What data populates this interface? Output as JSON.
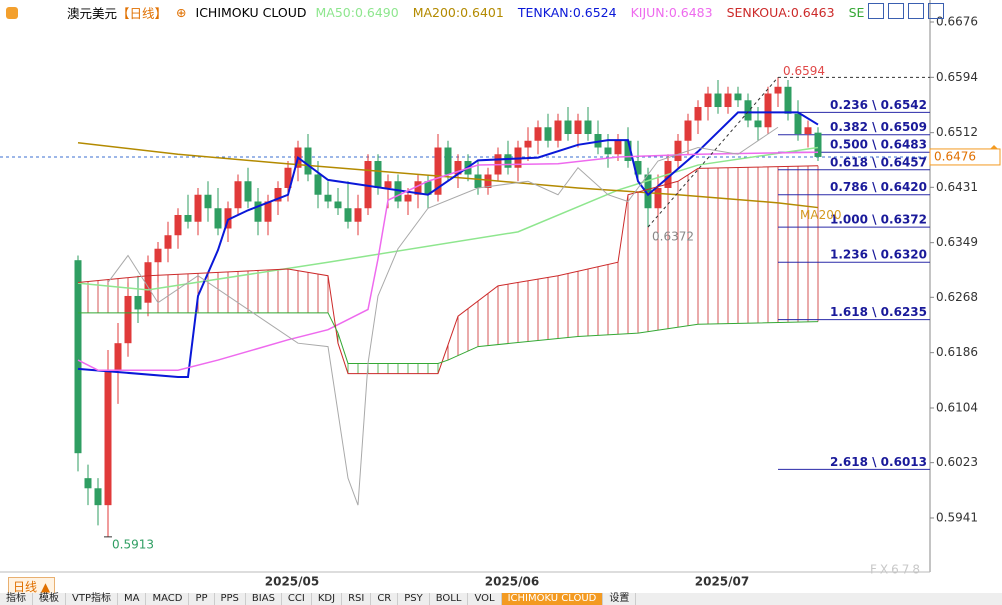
{
  "header": {
    "symbol": "澳元美元",
    "period": "【日线】",
    "study": "ICHIMOKU CLOUD"
  },
  "chart_data": {
    "type": "candlestick",
    "categories": [
      null,
      null,
      null,
      null,
      null,
      null,
      null,
      null,
      null,
      null,
      null,
      null,
      null,
      null,
      null,
      null,
      null,
      null,
      null,
      null,
      null,
      "2025/05",
      null,
      null,
      null,
      null,
      null,
      null,
      null,
      null,
      null,
      null,
      null,
      null,
      null,
      null,
      null,
      null,
      null,
      null,
      null,
      null,
      null,
      "2025/06",
      null,
      null,
      null,
      null,
      null,
      null,
      null,
      null,
      null,
      null,
      null,
      null,
      null,
      null,
      null,
      null,
      null,
      null,
      null,
      null,
      "2025/07",
      null,
      null,
      null,
      null,
      null,
      null,
      null,
      null,
      null,
      null
    ],
    "ylim": [
      0.58639,
      0.67086
    ],
    "yticks": [
      0.6676,
      0.6594,
      0.6512,
      0.6431,
      0.6349,
      0.6268,
      0.6186,
      0.6104,
      0.6023,
      0.5941
    ],
    "up_color": "#e03a3a",
    "down_color": "#2f9e62",
    "ohlc": [
      [
        0.6323,
        0.633,
        0.601,
        0.6037
      ],
      [
        0.6,
        0.602,
        0.596,
        0.5985
      ],
      [
        0.5985,
        0.6,
        0.593,
        0.596
      ],
      [
        0.596,
        0.619,
        0.5913,
        0.616
      ],
      [
        0.616,
        0.623,
        0.611,
        0.62
      ],
      [
        0.62,
        0.629,
        0.618,
        0.627
      ],
      [
        0.627,
        0.63,
        0.623,
        0.625
      ],
      [
        0.626,
        0.633,
        0.624,
        0.632
      ],
      [
        0.632,
        0.635,
        0.629,
        0.634
      ],
      [
        0.634,
        0.638,
        0.632,
        0.636
      ],
      [
        0.636,
        0.64,
        0.634,
        0.639
      ],
      [
        0.639,
        0.642,
        0.637,
        0.638
      ],
      [
        0.638,
        0.643,
        0.636,
        0.642
      ],
      [
        0.642,
        0.644,
        0.638,
        0.64
      ],
      [
        0.64,
        0.643,
        0.636,
        0.637
      ],
      [
        0.637,
        0.641,
        0.635,
        0.64
      ],
      [
        0.64,
        0.645,
        0.639,
        0.644
      ],
      [
        0.644,
        0.646,
        0.64,
        0.641
      ],
      [
        0.641,
        0.643,
        0.636,
        0.638
      ],
      [
        0.638,
        0.642,
        0.636,
        0.641
      ],
      [
        0.641,
        0.644,
        0.639,
        0.643
      ],
      [
        0.643,
        0.647,
        0.641,
        0.646
      ],
      [
        0.646,
        0.65,
        0.644,
        0.649
      ],
      [
        0.649,
        0.651,
        0.644,
        0.645
      ],
      [
        0.645,
        0.647,
        0.64,
        0.642
      ],
      [
        0.642,
        0.644,
        0.64,
        0.641
      ],
      [
        0.641,
        0.643,
        0.639,
        0.64
      ],
      [
        0.64,
        0.644,
        0.637,
        0.638
      ],
      [
        0.638,
        0.642,
        0.636,
        0.64
      ],
      [
        0.64,
        0.648,
        0.639,
        0.647
      ],
      [
        0.647,
        0.648,
        0.642,
        0.643
      ],
      [
        0.643,
        0.645,
        0.64,
        0.644
      ],
      [
        0.644,
        0.645,
        0.64,
        0.641
      ],
      [
        0.641,
        0.643,
        0.639,
        0.642
      ],
      [
        0.642,
        0.645,
        0.64,
        0.644
      ],
      [
        0.644,
        0.645,
        0.64,
        0.642
      ],
      [
        0.642,
        0.651,
        0.641,
        0.649
      ],
      [
        0.649,
        0.65,
        0.644,
        0.645
      ],
      [
        0.645,
        0.648,
        0.643,
        0.647
      ],
      [
        0.647,
        0.648,
        0.644,
        0.645
      ],
      [
        0.645,
        0.647,
        0.642,
        0.643
      ],
      [
        0.643,
        0.646,
        0.642,
        0.645
      ],
      [
        0.645,
        0.649,
        0.644,
        0.648
      ],
      [
        0.648,
        0.65,
        0.645,
        0.646
      ],
      [
        0.646,
        0.65,
        0.644,
        0.649
      ],
      [
        0.649,
        0.652,
        0.647,
        0.65
      ],
      [
        0.65,
        0.653,
        0.648,
        0.652
      ],
      [
        0.652,
        0.654,
        0.649,
        0.65
      ],
      [
        0.65,
        0.654,
        0.649,
        0.653
      ],
      [
        0.653,
        0.655,
        0.65,
        0.651
      ],
      [
        0.651,
        0.654,
        0.649,
        0.653
      ],
      [
        0.653,
        0.655,
        0.65,
        0.651
      ],
      [
        0.651,
        0.653,
        0.648,
        0.649
      ],
      [
        0.649,
        0.651,
        0.646,
        0.648
      ],
      [
        0.648,
        0.651,
        0.647,
        0.65
      ],
      [
        0.65,
        0.652,
        0.646,
        0.647
      ],
      [
        0.647,
        0.65,
        0.644,
        0.645
      ],
      [
        0.645,
        0.646,
        0.6372,
        0.64
      ],
      [
        0.64,
        0.645,
        0.639,
        0.643
      ],
      [
        0.643,
        0.648,
        0.642,
        0.647
      ],
      [
        0.647,
        0.651,
        0.646,
        0.65
      ],
      [
        0.65,
        0.654,
        0.648,
        0.653
      ],
      [
        0.653,
        0.656,
        0.651,
        0.655
      ],
      [
        0.655,
        0.658,
        0.653,
        0.657
      ],
      [
        0.657,
        0.659,
        0.654,
        0.655
      ],
      [
        0.655,
        0.658,
        0.654,
        0.657
      ],
      [
        0.657,
        0.658,
        0.655,
        0.656
      ],
      [
        0.656,
        0.657,
        0.652,
        0.653
      ],
      [
        0.653,
        0.655,
        0.65,
        0.652
      ],
      [
        0.652,
        0.658,
        0.651,
        0.657
      ],
      [
        0.657,
        0.6594,
        0.655,
        0.658
      ],
      [
        0.658,
        0.659,
        0.653,
        0.654
      ],
      [
        0.654,
        0.656,
        0.65,
        0.651
      ],
      [
        0.651,
        0.653,
        0.649,
        0.652
      ],
      [
        0.6512,
        0.652,
        0.647,
        0.6476
      ]
    ],
    "lines": [
      {
        "label": "MA50:0.6490",
        "color": "#8ee68e",
        "width": 1.5,
        "x": [
          0,
          7,
          25,
          44,
          54,
          62,
          74
        ],
        "values": [
          0.6289,
          0.6279,
          0.632,
          0.6365,
          0.6427,
          0.6464,
          0.649
        ]
      },
      {
        "label": "MA200:0.6401",
        "color": "#b38a00",
        "width": 1.5,
        "x": [
          0,
          10,
          20,
          30,
          40,
          50,
          60,
          70,
          74
        ],
        "values": [
          0.6497,
          0.648,
          0.6467,
          0.6455,
          0.6443,
          0.643,
          0.642,
          0.6408,
          0.6401
        ]
      },
      {
        "label": "TENKAN:0.6524",
        "color": "#0a18d8",
        "width": 2,
        "x": [
          0,
          10,
          11,
          12,
          14,
          15,
          17,
          21,
          22,
          25,
          35,
          40,
          46,
          50,
          53,
          55,
          56,
          57,
          62,
          66,
          72,
          74
        ],
        "values": [
          0.6162,
          0.615,
          0.615,
          0.627,
          0.6338,
          0.6383,
          0.6397,
          0.642,
          0.6475,
          0.6442,
          0.642,
          0.6471,
          0.6475,
          0.6494,
          0.6501,
          0.6501,
          0.644,
          0.642,
          0.6484,
          0.6542,
          0.6542,
          0.6524
        ]
      },
      {
        "label": "KIJUN:0.6483",
        "color": "#ee6aee",
        "width": 1.5,
        "x": [
          0,
          2,
          10,
          14,
          21,
          25,
          29,
          30,
          31,
          35,
          40,
          48,
          54,
          62,
          74
        ],
        "values": [
          0.6175,
          0.616,
          0.616,
          0.6175,
          0.6205,
          0.622,
          0.625,
          0.6325,
          0.6412,
          0.644,
          0.6464,
          0.6466,
          0.6476,
          0.648,
          0.6483
        ]
      },
      {
        "label": "SENKOUA:0.6463",
        "color": "#cc2a2a",
        "width": 1,
        "x": [
          0,
          7,
          21,
          25,
          26,
          27,
          36,
          38,
          42,
          48,
          54,
          55,
          60,
          62,
          74
        ],
        "values": [
          0.629,
          0.63,
          0.631,
          0.63,
          0.62,
          0.6155,
          0.6155,
          0.624,
          0.6285,
          0.63,
          0.632,
          0.642,
          0.644,
          0.6459,
          0.6463
        ]
      },
      {
        "label": "SE",
        "color": "#35a835",
        "width": 1,
        "x": [
          0,
          25,
          26,
          27,
          36,
          37,
          40,
          50,
          56,
          62,
          74
        ],
        "values": [
          0.6245,
          0.6245,
          0.6215,
          0.617,
          0.617,
          0.6175,
          0.6195,
          0.621,
          0.6215,
          0.6228,
          0.6232
        ]
      },
      {
        "color": "#a9a9a9",
        "width": 1,
        "x": [
          3,
          5,
          8,
          12,
          17,
          22,
          25,
          27,
          28,
          29,
          30,
          32,
          35,
          40,
          45,
          48,
          50,
          53,
          55,
          58,
          62,
          66,
          70
        ],
        "values": [
          0.629,
          0.633,
          0.626,
          0.63,
          0.625,
          0.62,
          0.6195,
          0.6,
          0.596,
          0.617,
          0.627,
          0.634,
          0.64,
          0.643,
          0.644,
          0.642,
          0.646,
          0.642,
          0.641,
          0.647,
          0.649,
          0.648,
          0.652
        ]
      }
    ],
    "ma200_tag": "MA200",
    "high_mark": {
      "index": 70,
      "value": 0.6594
    },
    "low_mark": {
      "index": 3,
      "value": 0.5913
    },
    "swing_low": {
      "index": 57,
      "value": 0.6372
    },
    "last_price": 0.6476,
    "fib_levels": [
      {
        "label": "0.236 \\ 0.6542",
        "value": 0.6542
      },
      {
        "label": "0.382 \\ 0.6509",
        "value": 0.6509
      },
      {
        "label": "0.500 \\ 0.6483",
        "value": 0.6483
      },
      {
        "label": "0.618 \\ 0.6457",
        "value": 0.6457
      },
      {
        "label": "0.786 \\ 0.6420",
        "value": 0.642
      },
      {
        "label": "1.000 \\ 0.6372",
        "value": 0.6372
      },
      {
        "label": "1.236 \\ 0.6320",
        "value": 0.632
      },
      {
        "label": "1.618 \\ 0.6235",
        "value": 0.6235
      },
      {
        "label": "2.618 \\ 0.6013",
        "value": 0.6013
      }
    ]
  },
  "toolbar": {
    "tab": "日线",
    "items": [
      "指标",
      "模板",
      "VTP指标",
      "MA",
      "MACD",
      "PP",
      "PPS",
      "BIAS",
      "CCI",
      "KDJ",
      "RSI",
      "CR",
      "PSY",
      "BOLL",
      "VOL",
      "ICHIMOKU CLOUD",
      "设置"
    ],
    "active": 15
  },
  "watermark": "FX678"
}
